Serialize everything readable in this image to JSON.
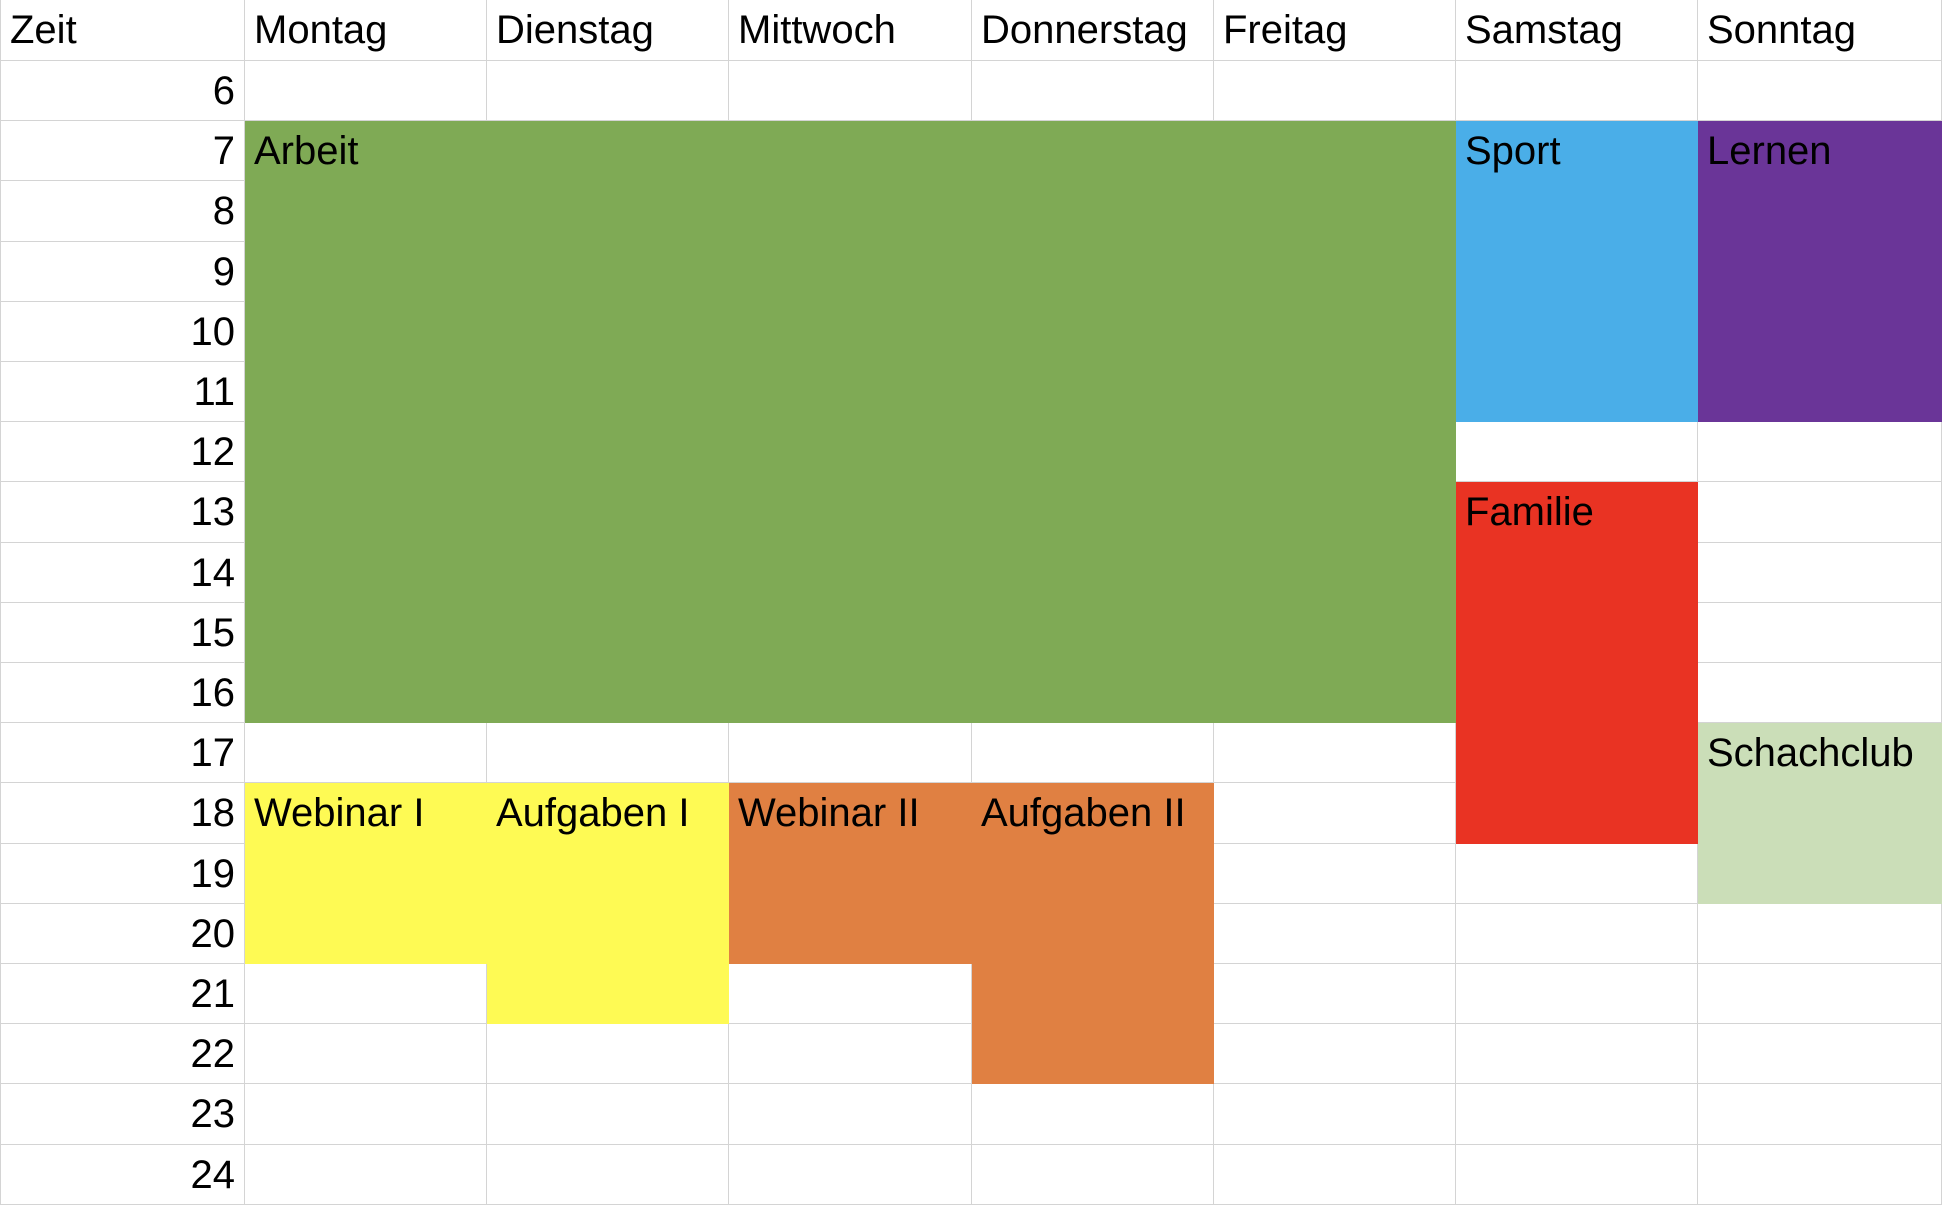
{
  "header": {
    "time_label": "Zeit",
    "days": [
      "Montag",
      "Dienstag",
      "Mittwoch",
      "Donnerstag",
      "Freitag",
      "Samstag",
      "Sonntag"
    ]
  },
  "hours": [
    "6",
    "7",
    "8",
    "9",
    "10",
    "11",
    "12",
    "13",
    "14",
    "15",
    "16",
    "17",
    "18",
    "19",
    "20",
    "21",
    "22",
    "23",
    "24"
  ],
  "events": [
    {
      "label": "Arbeit",
      "days": [
        "Montag",
        "Dienstag",
        "Mittwoch",
        "Donnerstag",
        "Freitag"
      ],
      "start": "7",
      "end": "16",
      "color": "#7faa55"
    },
    {
      "label": "Sport",
      "days": [
        "Samstag"
      ],
      "start": "7",
      "end": "11",
      "color": "#4aaee8"
    },
    {
      "label": "Lernen",
      "days": [
        "Sonntag"
      ],
      "start": "7",
      "end": "11",
      "color": "#6a3598"
    },
    {
      "label": "Familie",
      "days": [
        "Samstag"
      ],
      "start": "13",
      "end": "18",
      "color": "#e93323"
    },
    {
      "label": "Schachclub",
      "days": [
        "Sonntag"
      ],
      "start": "17",
      "end": "19",
      "color": "#cbdeb8"
    },
    {
      "label": "Webinar I",
      "days": [
        "Montag"
      ],
      "start": "18",
      "end": "20",
      "color": "#fefa54"
    },
    {
      "label": "Aufgaben I",
      "days": [
        "Dienstag"
      ],
      "start": "18",
      "end": "21",
      "color": "#fefa54"
    },
    {
      "label": "Webinar II",
      "days": [
        "Mittwoch"
      ],
      "start": "18",
      "end": "20",
      "color": "#e08042"
    },
    {
      "label": "Aufgaben II",
      "days": [
        "Donnerstag"
      ],
      "start": "18",
      "end": "22",
      "color": "#e08042"
    }
  ]
}
